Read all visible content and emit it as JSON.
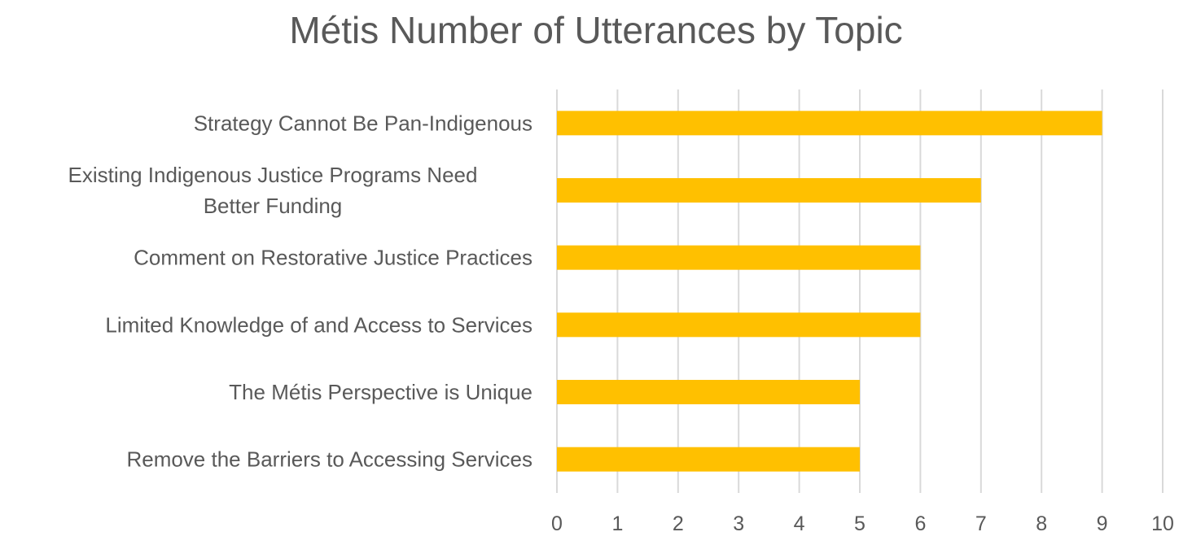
{
  "chart_data": {
    "type": "bar",
    "orientation": "horizontal",
    "title": "Métis Number of Utterances by Topic",
    "categories": [
      "Strategy Cannot Be Pan-Indigenous",
      "Existing Indigenous Justice Programs Need Better Funding",
      "Comment on Restorative Justice Practices",
      "Limited Knowledge of and Access to Services",
      "The Métis Perspective is Unique",
      "Remove the Barriers to Accessing Services"
    ],
    "values": [
      9,
      7,
      6,
      6,
      5,
      5
    ],
    "xlim": [
      0,
      10
    ],
    "xticks": [
      "0",
      "1",
      "2",
      "3",
      "4",
      "5",
      "6",
      "7",
      "8",
      "9",
      "10"
    ],
    "grid": "vertical",
    "bar_color": "#FFC000",
    "grid_color": "#D9D9D9",
    "legend": "none"
  }
}
